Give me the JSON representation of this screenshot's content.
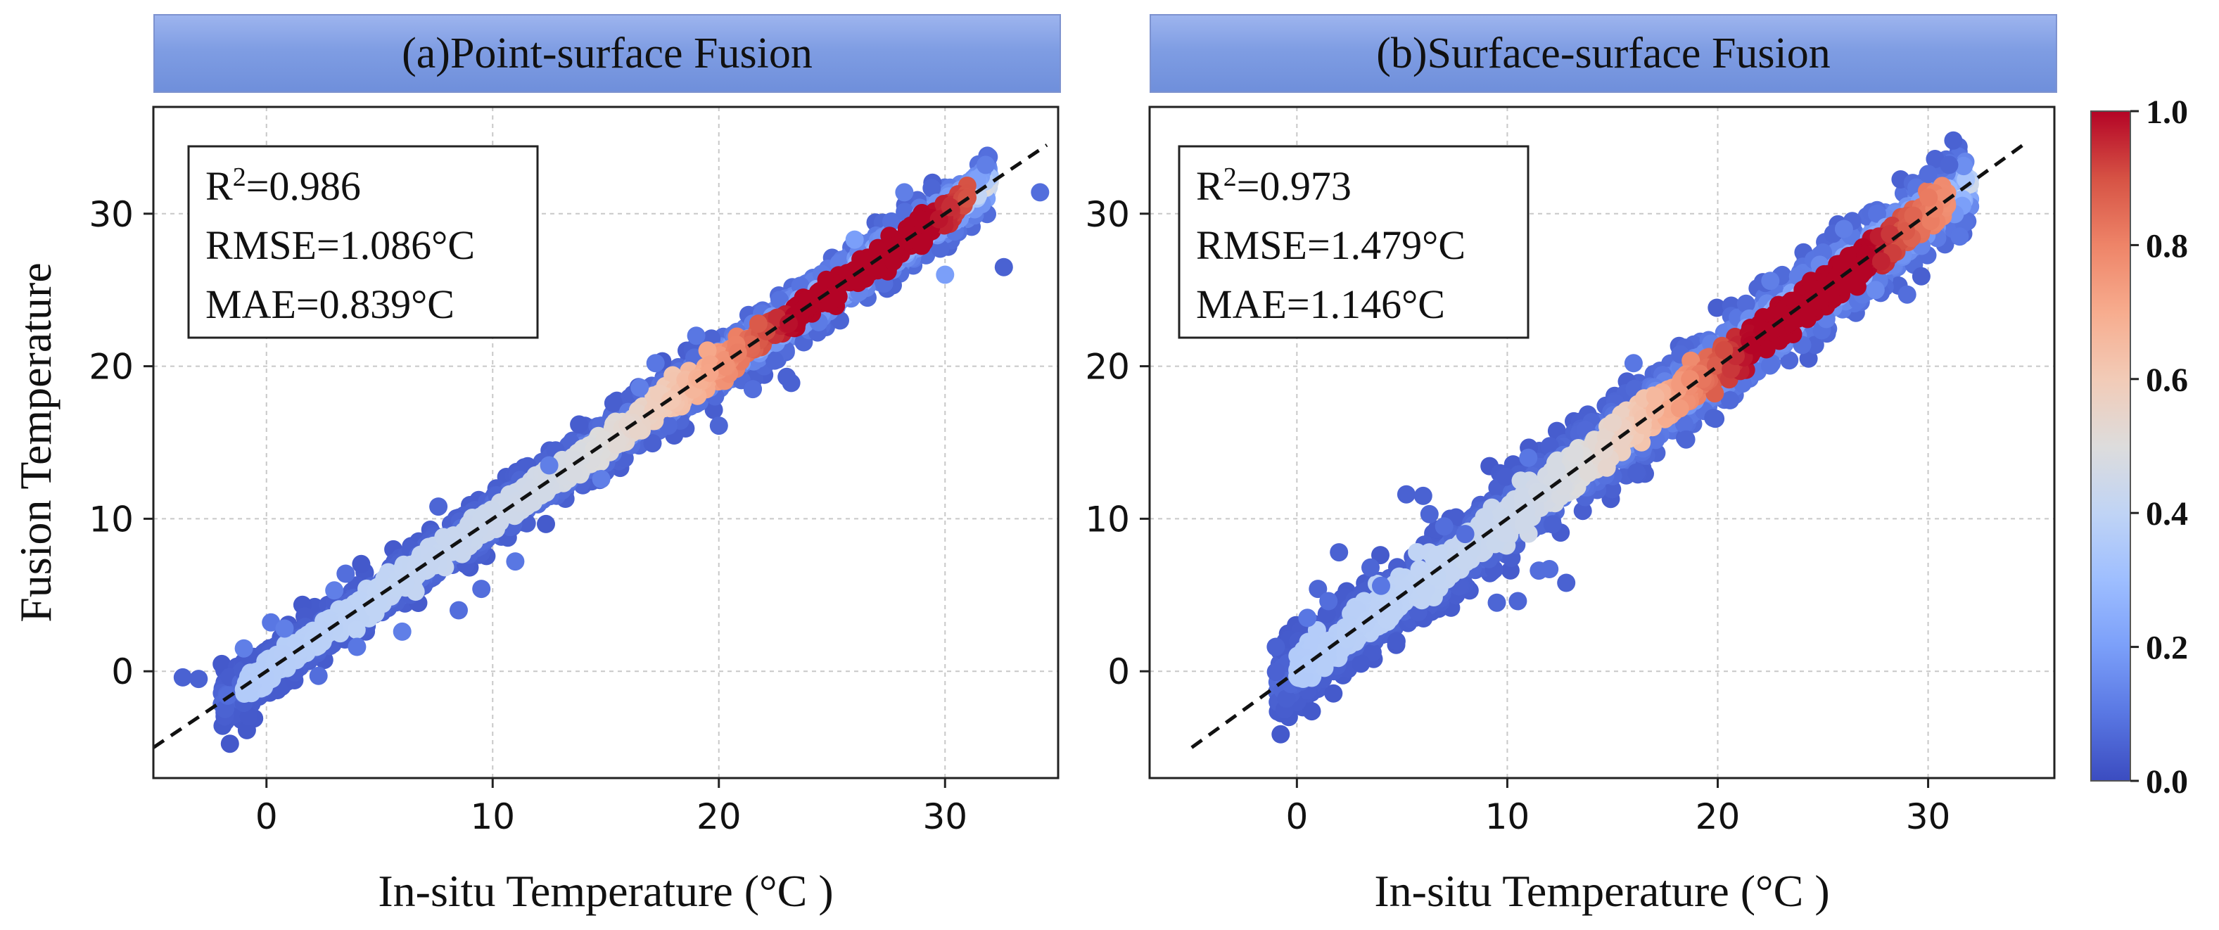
{
  "figure_colors": {
    "colormap": [
      "#3b4cc0",
      "#5977e3",
      "#7b9ff9",
      "#9ebeff",
      "#c0d4f5",
      "#dddcdc",
      "#f2cbb7",
      "#f7ac8e",
      "#ee8468",
      "#d65244",
      "#b40426"
    ],
    "dash_line": "#111111",
    "grid": "#c8c8c8",
    "banner": "#7f9de3"
  },
  "colorbar": {
    "ticks": [
      "0.0",
      "0.2",
      "0.4",
      "0.6",
      "0.8",
      "1.0"
    ],
    "range": [
      0,
      1
    ]
  },
  "chart_data": [
    {
      "type": "scatter",
      "title": "(a)Point-surface Fusion",
      "xlabel": "In-situ Temperature (°C )",
      "ylabel": "Fusion Temperature",
      "xlim": [
        -5,
        35
      ],
      "ylim": [
        -7,
        37
      ],
      "xticks": [
        0,
        10,
        20,
        30
      ],
      "yticks": [
        0,
        10,
        20,
        30
      ],
      "xtick_labels": [
        "0",
        "10",
        "20",
        "30"
      ],
      "ytick_labels": [
        "0",
        "10",
        "20",
        "30"
      ],
      "grid": true,
      "reference_line": {
        "x": [
          -5,
          34.5
        ],
        "y": [
          -5,
          34.5
        ],
        "style": "dashed"
      },
      "stats": {
        "r2_label": "R",
        "r2_sup": "2",
        "r2_value": "=0.986",
        "rmse": "RMSE=1.086°C",
        "mae": "MAE=0.839°C"
      },
      "density_core": {
        "x_range": [
          -2,
          32
        ],
        "spread": 0.9,
        "density_peak_x": 26
      },
      "points": [
        {
          "x": -3.7,
          "y": -0.4,
          "density": 0.05
        },
        {
          "x": -3.0,
          "y": -0.5,
          "density": 0.05
        },
        {
          "x": -1.0,
          "y": 1.5,
          "density": 0.12
        },
        {
          "x": 0.2,
          "y": 3.2,
          "density": 0.1
        },
        {
          "x": 0.8,
          "y": 2.8,
          "density": 0.12
        },
        {
          "x": 2.3,
          "y": -0.3,
          "density": 0.08
        },
        {
          "x": 3.0,
          "y": 5.3,
          "density": 0.12
        },
        {
          "x": 4.0,
          "y": 1.6,
          "density": 0.1
        },
        {
          "x": 3.5,
          "y": 6.4,
          "density": 0.08
        },
        {
          "x": 6.0,
          "y": 2.6,
          "density": 0.12
        },
        {
          "x": 7.6,
          "y": 10.8,
          "density": 0.06
        },
        {
          "x": 8.5,
          "y": 4.0,
          "density": 0.08
        },
        {
          "x": 9.5,
          "y": 5.4,
          "density": 0.08
        },
        {
          "x": 11.0,
          "y": 7.2,
          "density": 0.1
        },
        {
          "x": 12.5,
          "y": 13.5,
          "density": 0.12
        },
        {
          "x": 14.8,
          "y": 12.6,
          "density": 0.12
        },
        {
          "x": 16.5,
          "y": 18.6,
          "density": 0.12
        },
        {
          "x": 17.2,
          "y": 20.2,
          "density": 0.1
        },
        {
          "x": 19.0,
          "y": 22.0,
          "density": 0.1
        },
        {
          "x": 20.0,
          "y": 16.1,
          "density": 0.06
        },
        {
          "x": 21.5,
          "y": 18.5,
          "density": 0.08
        },
        {
          "x": 23.0,
          "y": 19.3,
          "density": 0.05
        },
        {
          "x": 23.2,
          "y": 18.9,
          "density": 0.05
        },
        {
          "x": 26.0,
          "y": 28.3,
          "density": 0.2
        },
        {
          "x": 28.2,
          "y": 31.4,
          "density": 0.12
        },
        {
          "x": 30.0,
          "y": 26.0,
          "density": 0.2
        },
        {
          "x": 31.8,
          "y": 33.2,
          "density": 0.12
        },
        {
          "x": 32.6,
          "y": 26.5,
          "density": 0.05
        },
        {
          "x": 34.2,
          "y": 31.4,
          "density": 0.08
        }
      ]
    },
    {
      "type": "scatter",
      "title": "(b)Surface-surface Fusion",
      "xlabel": "In-situ Temperature (°C )",
      "ylabel": "",
      "xlim": [
        -7,
        36
      ],
      "ylim": [
        -7,
        37
      ],
      "xticks": [
        0,
        10,
        20,
        30
      ],
      "yticks": [
        0,
        10,
        20,
        30
      ],
      "xtick_labels": [
        "0",
        "10",
        "20",
        "30"
      ],
      "ytick_labels": [
        "0",
        "10",
        "20",
        "30"
      ],
      "grid": true,
      "reference_line": {
        "x": [
          -5,
          34.5
        ],
        "y": [
          -5,
          34.5
        ],
        "style": "dashed"
      },
      "stats": {
        "r2_label": "R",
        "r2_sup": "2",
        "r2_value": "=0.973",
        "rmse": "RMSE=1.479°C",
        "mae": "MAE=1.146°C"
      },
      "density_core": {
        "x_range": [
          -1,
          32
        ],
        "spread": 1.3,
        "density_peak_x": 24
      },
      "points": [
        {
          "x": -1.0,
          "y": 1.6,
          "density": 0.05
        },
        {
          "x": 0.5,
          "y": 3.5,
          "density": 0.1
        },
        {
          "x": 1.0,
          "y": 5.4,
          "density": 0.06
        },
        {
          "x": 1.5,
          "y": 4.6,
          "density": 0.08
        },
        {
          "x": 2.0,
          "y": 7.8,
          "density": 0.05
        },
        {
          "x": 3.5,
          "y": 6.8,
          "density": 0.06
        },
        {
          "x": 4.0,
          "y": 5.6,
          "density": 0.1
        },
        {
          "x": 5.2,
          "y": 11.6,
          "density": 0.05
        },
        {
          "x": 6.0,
          "y": 11.5,
          "density": 0.05
        },
        {
          "x": 6.3,
          "y": 10.3,
          "density": 0.06
        },
        {
          "x": 7.0,
          "y": 9.5,
          "density": 0.08
        },
        {
          "x": 8.0,
          "y": 9.0,
          "density": 0.08
        },
        {
          "x": 9.5,
          "y": 4.5,
          "density": 0.06
        },
        {
          "x": 10.5,
          "y": 4.6,
          "density": 0.06
        },
        {
          "x": 11.5,
          "y": 6.6,
          "density": 0.08
        },
        {
          "x": 12.0,
          "y": 6.7,
          "density": 0.08
        },
        {
          "x": 12.8,
          "y": 5.8,
          "density": 0.05
        },
        {
          "x": 11.0,
          "y": 14.0,
          "density": 0.1
        },
        {
          "x": 16.0,
          "y": 20.2,
          "density": 0.1
        },
        {
          "x": 18.5,
          "y": 15.2,
          "density": 0.06
        },
        {
          "x": 22.5,
          "y": 25.6,
          "density": 0.12
        },
        {
          "x": 26.0,
          "y": 29.0,
          "density": 0.12
        },
        {
          "x": 27.5,
          "y": 25.0,
          "density": 0.15
        },
        {
          "x": 29.0,
          "y": 24.7,
          "density": 0.08
        },
        {
          "x": 30.0,
          "y": 32.6,
          "density": 0.08
        },
        {
          "x": 31.0,
          "y": 33.2,
          "density": 0.06
        },
        {
          "x": 31.2,
          "y": 34.8,
          "density": 0.05
        },
        {
          "x": 31.5,
          "y": 28.5,
          "density": 0.1
        }
      ]
    }
  ]
}
